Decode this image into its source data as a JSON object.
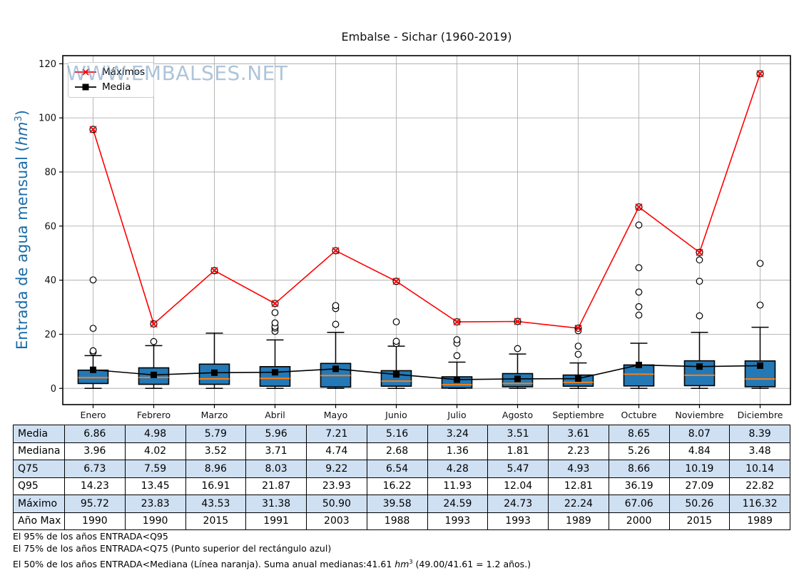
{
  "watermark": {
    "text": "WWW.EMBALSES.NET"
  },
  "ylabel_parts": {
    "prefix": "Entrada de agua mensual (",
    "unit": "hm",
    "exp": "3",
    "suffix": ")"
  },
  "chart_data": {
    "type": "boxplot",
    "title": "Embalse - Sichar (1960-2019)",
    "ylabel": "Entrada de agua mensual (hm³)",
    "xlabel": "",
    "months": [
      "Enero",
      "Febrero",
      "Marzo",
      "Abril",
      "Mayo",
      "Junio",
      "Julio",
      "Agosto",
      "Septiembre",
      "Octubre",
      "Noviembre",
      "Diciembre"
    ],
    "yticks": [
      0,
      20,
      40,
      60,
      80,
      100,
      120
    ],
    "ylim": [
      -6,
      123
    ],
    "grid": true,
    "legend_position": "upper-left",
    "legend": [
      {
        "label": "Máximos",
        "marker": "x",
        "color": "#ff0000"
      },
      {
        "label": "Media",
        "marker": "square",
        "color": "#000000"
      }
    ],
    "series": {
      "media": [
        6.86,
        4.98,
        5.79,
        5.96,
        7.21,
        5.16,
        3.24,
        3.51,
        3.61,
        8.65,
        8.07,
        8.39
      ],
      "mediana": [
        3.96,
        4.02,
        3.52,
        3.71,
        4.74,
        2.68,
        1.36,
        1.81,
        2.23,
        5.26,
        4.84,
        3.48
      ],
      "q75": [
        6.73,
        7.59,
        8.96,
        8.03,
        9.22,
        6.54,
        4.28,
        5.47,
        4.93,
        8.66,
        10.19,
        10.14
      ],
      "q95": [
        14.23,
        13.45,
        16.91,
        21.87,
        23.93,
        16.22,
        11.93,
        12.04,
        12.81,
        36.19,
        27.09,
        22.82
      ],
      "maximo": [
        95.72,
        23.83,
        43.53,
        31.38,
        50.9,
        39.58,
        24.59,
        24.73,
        22.24,
        67.06,
        50.26,
        116.32
      ],
      "ano_max": [
        1990,
        1990,
        2015,
        1991,
        2003,
        1988,
        1993,
        1993,
        1989,
        2000,
        2015,
        1989
      ]
    },
    "box_estimates": {
      "q25": [
        1.8,
        1.5,
        1.5,
        0.8,
        0.5,
        0.8,
        0.1,
        0.6,
        0.8,
        0.9,
        1.0,
        0.6
      ],
      "whisker_low": [
        0,
        0,
        0,
        0,
        0,
        0,
        0,
        0,
        0,
        0,
        0,
        0
      ],
      "whisker_high": [
        12.1,
        15.8,
        20.4,
        17.9,
        20.7,
        15.6,
        9.7,
        12.7,
        9.4,
        16.7,
        20.7,
        22.6
      ],
      "outliers": [
        [
          13.4,
          13.9,
          22.2,
          40.1
        ],
        [
          17.3
        ],
        [],
        [
          21.1,
          22.3,
          22.9,
          24.2,
          28.0
        ],
        [
          23.7,
          29.5,
          30.6
        ],
        [
          16.6,
          17.4,
          24.6
        ],
        [
          12.1,
          16.7,
          18.0
        ],
        [
          14.7
        ],
        [
          12.6,
          15.6,
          21.3
        ],
        [
          27.1,
          30.2,
          35.6,
          44.6,
          60.4
        ],
        [
          26.8,
          39.6,
          47.5
        ],
        [
          30.8,
          46.2
        ]
      ]
    },
    "colors": {
      "box_fill": "#2478b5",
      "box_edge": "#000000",
      "median_line": "#ff7f0e",
      "mean_line": "#000000",
      "max_line": "#ff0000",
      "grid": "#b0b0b0",
      "ylabel": "#1b6ca8",
      "table_shaded_row": "#cfe0f2",
      "watermark": "#6c94ba"
    }
  },
  "table": {
    "row_labels": [
      "Media",
      "Mediana",
      "Q75",
      "Q95",
      "Máximo",
      "Año Max"
    ],
    "shaded_rows": [
      0,
      2,
      4
    ],
    "rows": [
      [
        "6.86",
        "4.98",
        "5.79",
        "5.96",
        "7.21",
        "5.16",
        "3.24",
        "3.51",
        "3.61",
        "8.65",
        "8.07",
        "8.39"
      ],
      [
        "3.96",
        "4.02",
        "3.52",
        "3.71",
        "4.74",
        "2.68",
        "1.36",
        "1.81",
        "2.23",
        "5.26",
        "4.84",
        "3.48"
      ],
      [
        "6.73",
        "7.59",
        "8.96",
        "8.03",
        "9.22",
        "6.54",
        "4.28",
        "5.47",
        "4.93",
        "8.66",
        "10.19",
        "10.14"
      ],
      [
        "14.23",
        "13.45",
        "16.91",
        "21.87",
        "23.93",
        "16.22",
        "11.93",
        "12.04",
        "12.81",
        "36.19",
        "27.09",
        "22.82"
      ],
      [
        "95.72",
        "23.83",
        "43.53",
        "31.38",
        "50.90",
        "39.58",
        "24.59",
        "24.73",
        "22.24",
        "67.06",
        "50.26",
        "116.32"
      ],
      [
        "1990",
        "1990",
        "2015",
        "1991",
        "2003",
        "1988",
        "1993",
        "1993",
        "1989",
        "2000",
        "2015",
        "1989"
      ]
    ]
  },
  "footnotes": {
    "line1": "El 95% de los años ENTRADA<Q95",
    "line2": "El 75% de los años ENTRADA<Q75 (Punto superior del rectángulo azul)",
    "line3_prefix": "El 50% de los años ENTRADA<Mediana (Línea naranja). Suma anual medianas:41.61 ",
    "line3_unit": "hm",
    "line3_exp": "3",
    "line3_suffix": " (49.00/41.61 = 1.2 años.)"
  }
}
